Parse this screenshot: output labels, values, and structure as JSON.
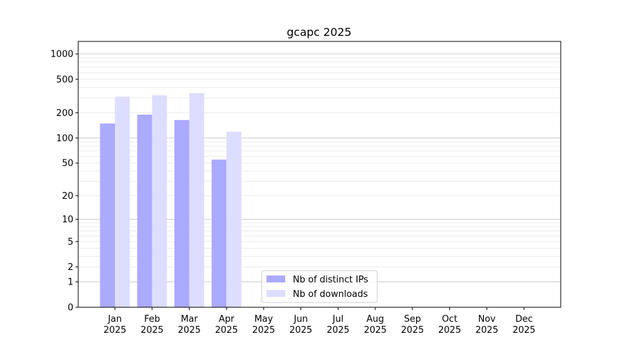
{
  "chart_data": {
    "type": "bar",
    "title": "gcapc 2025",
    "xlabel": "",
    "ylabel": "",
    "y_scale": "log(1+y)",
    "ylim": [
      0,
      1300
    ],
    "y_ticks": [
      0,
      1,
      2,
      5,
      10,
      20,
      50,
      100,
      200,
      500,
      1000
    ],
    "grid": true,
    "legend_position": "bottom-center",
    "categories": [
      "Jan\n2025",
      "Feb\n2025",
      "Mar\n2025",
      "Apr\n2025",
      "May\n2025",
      "Jun\n2025",
      "Jul\n2025",
      "Aug\n2025",
      "Sep\n2025",
      "Oct\n2025",
      "Nov\n2025",
      "Dec\n2025"
    ],
    "series": [
      {
        "name": "Nb of distinct IPs",
        "color": "#aaaaff",
        "values": [
          149,
          190,
          164,
          55,
          null,
          null,
          null,
          null,
          null,
          null,
          null,
          null
        ]
      },
      {
        "name": "Nb of downloads",
        "color": "#ddddff",
        "values": [
          311,
          323,
          342,
          119,
          null,
          null,
          null,
          null,
          null,
          null,
          null,
          null
        ]
      }
    ]
  }
}
